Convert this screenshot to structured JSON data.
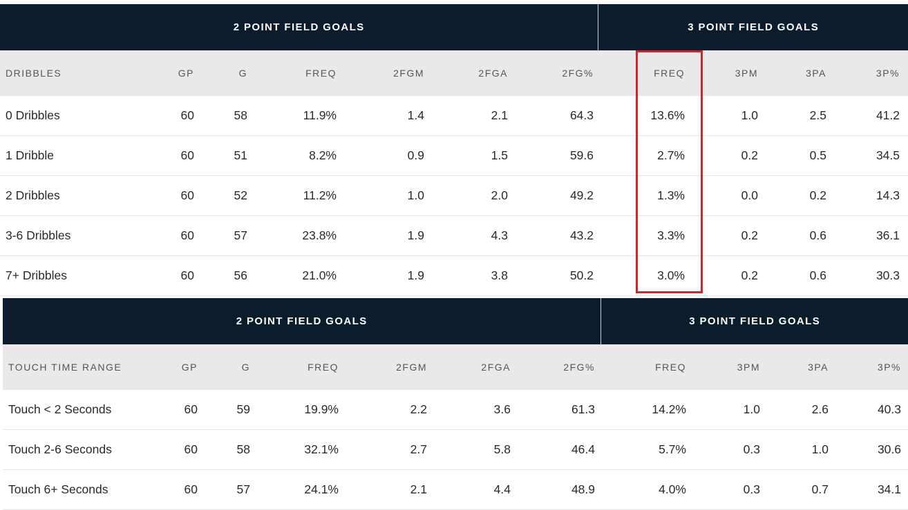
{
  "accent_color": "#d0262b",
  "header_color": "#0b1d2c",
  "dribbles_table": {
    "groups": [
      "",
      "2 POINT FIELD GOALS",
      "3 POINT FIELD GOALS"
    ],
    "headers": [
      "DRIBBLES",
      "GP",
      "G",
      "FREQ",
      "2FGM",
      "2FGA",
      "2FG%",
      "FREQ",
      "3PM",
      "3PA",
      "3P%"
    ],
    "rows": [
      [
        "0 Dribbles",
        "60",
        "58",
        "11.9%",
        "1.4",
        "2.1",
        "64.3",
        "13.6%",
        "1.0",
        "2.5",
        "41.2"
      ],
      [
        "1 Dribble",
        "60",
        "51",
        "8.2%",
        "0.9",
        "1.5",
        "59.6",
        "2.7%",
        "0.2",
        "0.5",
        "34.5"
      ],
      [
        "2 Dribbles",
        "60",
        "52",
        "11.2%",
        "1.0",
        "2.0",
        "49.2",
        "1.3%",
        "0.0",
        "0.2",
        "14.3"
      ],
      [
        "3-6 Dribbles",
        "60",
        "57",
        "23.8%",
        "1.9",
        "4.3",
        "43.2",
        "3.3%",
        "0.2",
        "0.6",
        "36.1"
      ],
      [
        "7+ Dribbles",
        "60",
        "56",
        "21.0%",
        "1.9",
        "3.8",
        "50.2",
        "3.0%",
        "0.2",
        "0.6",
        "30.3"
      ]
    ]
  },
  "touch_table": {
    "groups": [
      "",
      "2 POINT FIELD GOALS",
      "3 POINT FIELD GOALS"
    ],
    "headers": [
      "TOUCH TIME RANGE",
      "GP",
      "G",
      "FREQ",
      "2FGM",
      "2FGA",
      "2FG%",
      "FREQ",
      "3PM",
      "3PA",
      "3P%"
    ],
    "rows": [
      [
        "Touch < 2 Seconds",
        "60",
        "59",
        "19.9%",
        "2.2",
        "3.6",
        "61.3",
        "14.2%",
        "1.0",
        "2.6",
        "40.3"
      ],
      [
        "Touch 2-6 Seconds",
        "60",
        "58",
        "32.1%",
        "2.7",
        "5.8",
        "46.4",
        "5.7%",
        "0.3",
        "1.0",
        "30.6"
      ],
      [
        "Touch 6+ Seconds",
        "60",
        "57",
        "24.1%",
        "2.1",
        "4.4",
        "48.9",
        "4.0%",
        "0.3",
        "0.7",
        "34.1"
      ]
    ]
  }
}
